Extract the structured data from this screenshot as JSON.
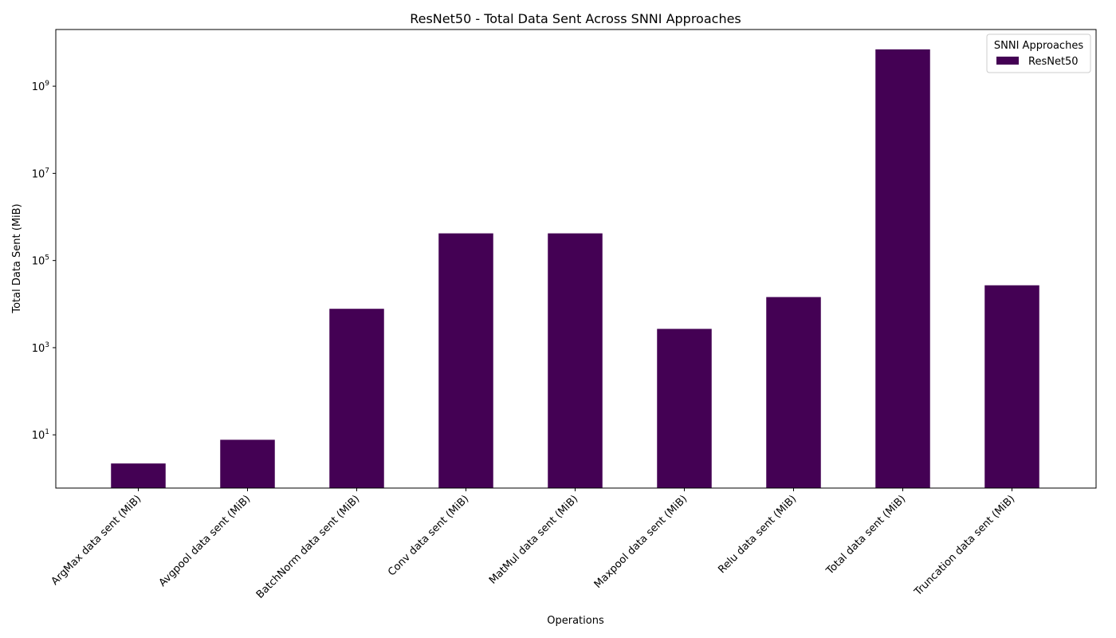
{
  "chart_data": {
    "type": "bar",
    "title": "ResNet50 - Total Data Sent Across SNNI Approaches",
    "xlabel": "Operations",
    "ylabel": "Total Data Sent (MiB)",
    "yscale": "log",
    "ylim": [
      0.6,
      20000000000
    ],
    "yticks": [
      {
        "value": 10,
        "base": "10",
        "exp": "1"
      },
      {
        "value": 1000,
        "base": "10",
        "exp": "3"
      },
      {
        "value": 100000,
        "base": "10",
        "exp": "5"
      },
      {
        "value": 10000000,
        "base": "10",
        "exp": "7"
      },
      {
        "value": 1000000000,
        "base": "10",
        "exp": "9"
      }
    ],
    "categories": [
      "ArgMax data sent (MiB)",
      "Avgpool data sent (MiB)",
      "BatchNorm data sent (MiB)",
      "Conv data sent (MiB)",
      "MatMul data sent (MiB)",
      "Maxpool data sent (MiB)",
      "Relu data sent (MiB)",
      "Total data sent (MiB)",
      "Truncation data sent (MiB)"
    ],
    "series": [
      {
        "name": "ResNet50",
        "color": "#440154",
        "values": [
          2.2,
          7.7,
          7800,
          420000,
          420000,
          2700,
          14500,
          7000000000,
          27000
        ]
      }
    ],
    "legend": {
      "title": "SNNI Approaches",
      "position": "top-right"
    },
    "grid": false
  }
}
